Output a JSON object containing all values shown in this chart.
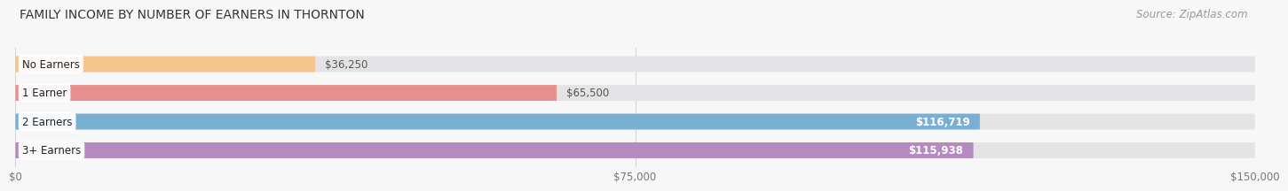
{
  "title": "FAMILY INCOME BY NUMBER OF EARNERS IN THORNTON",
  "source": "Source: ZipAtlas.com",
  "categories": [
    "No Earners",
    "1 Earner",
    "2 Earners",
    "3+ Earners"
  ],
  "values": [
    36250,
    65500,
    116719,
    115938
  ],
  "bar_colors": [
    "#f5c58c",
    "#e89090",
    "#7aafd4",
    "#b48ac0"
  ],
  "bar_bg_color": "#e8e8ea",
  "label_colors": [
    "#555555",
    "#555555",
    "#ffffff",
    "#ffffff"
  ],
  "value_labels": [
    "$36,250",
    "$65,500",
    "$116,719",
    "$115,938"
  ],
  "xlim": [
    0,
    150000
  ],
  "xticks": [
    0,
    75000,
    150000
  ],
  "xtick_labels": [
    "$0",
    "$75,000",
    "$150,000"
  ],
  "title_fontsize": 10,
  "source_fontsize": 8.5,
  "label_fontsize": 8.5,
  "value_fontsize": 8.5,
  "tick_fontsize": 8.5,
  "bg_color": "#f7f7f7",
  "bar_bg": "#e4e4e6"
}
